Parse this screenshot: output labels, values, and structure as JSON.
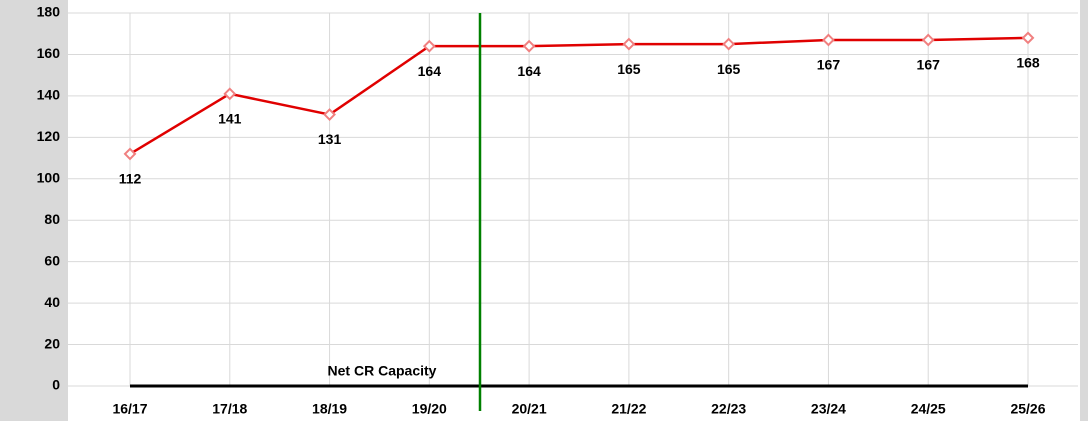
{
  "chart_data": {
    "type": "line",
    "categories": [
      "16/17",
      "17/18",
      "18/19",
      "19/20",
      "20/21",
      "21/22",
      "22/23",
      "23/24",
      "24/25",
      "25/26"
    ],
    "series": [
      {
        "name": "Net CR Capacity",
        "color": "#e00000",
        "values": [
          112,
          141,
          131,
          164,
          164,
          165,
          165,
          167,
          167,
          168
        ]
      }
    ],
    "ylim": [
      0,
      180
    ],
    "yticks": [
      0,
      20,
      40,
      60,
      80,
      100,
      120,
      140,
      160,
      180
    ],
    "grid": true
  }
}
